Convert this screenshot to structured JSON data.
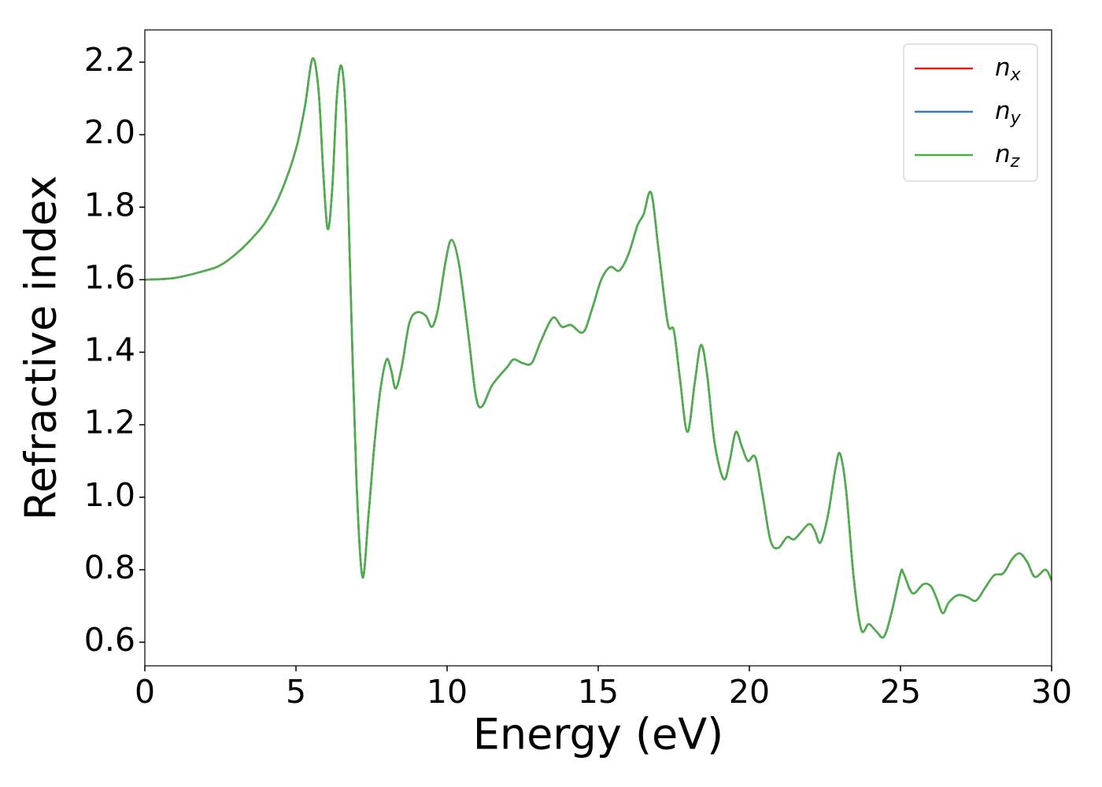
{
  "chart_data": {
    "type": "line",
    "x_label": "Energy (eV)",
    "y_label": "Refractive index",
    "x": [
      0,
      1,
      2,
      2.5,
      3,
      3.5,
      4,
      4.5,
      5,
      5.3,
      5.55,
      5.75,
      5.9,
      6.05,
      6.2,
      6.35,
      6.5,
      6.65,
      6.8,
      7.0,
      7.2,
      7.4,
      7.6,
      7.8,
      8.0,
      8.15,
      8.3,
      8.5,
      8.75,
      9.0,
      9.3,
      9.5,
      9.7,
      9.95,
      10.15,
      10.4,
      10.7,
      10.95,
      11.15,
      11.5,
      12.0,
      12.2,
      12.5,
      12.8,
      13.1,
      13.5,
      13.8,
      14.1,
      14.5,
      14.8,
      15.1,
      15.4,
      15.7,
      16.0,
      16.3,
      16.5,
      16.75,
      17.0,
      17.3,
      17.5,
      17.7,
      17.95,
      18.2,
      18.4,
      18.6,
      18.85,
      19.15,
      19.35,
      19.55,
      19.75,
      19.95,
      20.2,
      20.45,
      20.7,
      20.95,
      21.25,
      21.5,
      21.95,
      22.15,
      22.35,
      22.6,
      22.85,
      23.0,
      23.2,
      23.45,
      23.7,
      23.95,
      24.2,
      24.45,
      24.7,
      25.0,
      25.1,
      25.4,
      25.75,
      26.0,
      26.2,
      26.4,
      26.6,
      26.9,
      27.2,
      27.5,
      27.8,
      28.1,
      28.4,
      28.7,
      28.95,
      29.2,
      29.45,
      29.8,
      30.0
    ],
    "series": [
      {
        "name": "nx",
        "color": "#e41a1c",
        "values": [
          1.6,
          1.605,
          1.625,
          1.64,
          1.67,
          1.71,
          1.76,
          1.84,
          1.96,
          2.08,
          2.21,
          2.12,
          1.9,
          1.74,
          1.85,
          2.1,
          2.19,
          2.05,
          1.6,
          1.05,
          0.78,
          0.95,
          1.15,
          1.3,
          1.38,
          1.35,
          1.3,
          1.36,
          1.48,
          1.51,
          1.5,
          1.47,
          1.52,
          1.65,
          1.71,
          1.64,
          1.45,
          1.28,
          1.25,
          1.31,
          1.36,
          1.38,
          1.37,
          1.37,
          1.43,
          1.495,
          1.47,
          1.475,
          1.455,
          1.52,
          1.6,
          1.635,
          1.625,
          1.67,
          1.75,
          1.78,
          1.84,
          1.68,
          1.48,
          1.46,
          1.33,
          1.18,
          1.32,
          1.42,
          1.34,
          1.15,
          1.05,
          1.1,
          1.18,
          1.14,
          1.1,
          1.11,
          1.0,
          0.88,
          0.86,
          0.89,
          0.885,
          0.925,
          0.91,
          0.875,
          0.95,
          1.08,
          1.12,
          1.02,
          0.78,
          0.635,
          0.65,
          0.63,
          0.615,
          0.68,
          0.79,
          0.79,
          0.735,
          0.76,
          0.755,
          0.72,
          0.68,
          0.71,
          0.73,
          0.725,
          0.715,
          0.75,
          0.785,
          0.79,
          0.83,
          0.845,
          0.82,
          0.78,
          0.8,
          0.77
        ]
      },
      {
        "name": "ny",
        "color": "#377eb8",
        "values": [
          1.6,
          1.605,
          1.625,
          1.64,
          1.67,
          1.71,
          1.76,
          1.84,
          1.96,
          2.08,
          2.21,
          2.12,
          1.9,
          1.74,
          1.85,
          2.1,
          2.19,
          2.05,
          1.6,
          1.05,
          0.78,
          0.95,
          1.15,
          1.3,
          1.38,
          1.35,
          1.3,
          1.36,
          1.48,
          1.51,
          1.5,
          1.47,
          1.52,
          1.65,
          1.71,
          1.64,
          1.45,
          1.28,
          1.25,
          1.31,
          1.36,
          1.38,
          1.37,
          1.37,
          1.43,
          1.495,
          1.47,
          1.475,
          1.455,
          1.52,
          1.6,
          1.635,
          1.625,
          1.67,
          1.75,
          1.78,
          1.84,
          1.68,
          1.48,
          1.46,
          1.33,
          1.18,
          1.32,
          1.42,
          1.34,
          1.15,
          1.05,
          1.1,
          1.18,
          1.14,
          1.1,
          1.11,
          1.0,
          0.88,
          0.86,
          0.89,
          0.885,
          0.925,
          0.91,
          0.875,
          0.95,
          1.08,
          1.12,
          1.02,
          0.78,
          0.635,
          0.65,
          0.63,
          0.615,
          0.68,
          0.79,
          0.79,
          0.735,
          0.76,
          0.755,
          0.72,
          0.68,
          0.71,
          0.73,
          0.725,
          0.715,
          0.75,
          0.785,
          0.79,
          0.83,
          0.845,
          0.82,
          0.78,
          0.8,
          0.77
        ]
      },
      {
        "name": "nz",
        "color": "#4daf4a",
        "values": [
          1.6,
          1.605,
          1.625,
          1.64,
          1.67,
          1.71,
          1.76,
          1.84,
          1.96,
          2.08,
          2.21,
          2.12,
          1.9,
          1.74,
          1.85,
          2.1,
          2.19,
          2.05,
          1.6,
          1.05,
          0.78,
          0.95,
          1.15,
          1.3,
          1.38,
          1.35,
          1.3,
          1.36,
          1.48,
          1.51,
          1.5,
          1.47,
          1.52,
          1.65,
          1.71,
          1.64,
          1.45,
          1.28,
          1.25,
          1.31,
          1.36,
          1.38,
          1.37,
          1.37,
          1.43,
          1.495,
          1.47,
          1.475,
          1.455,
          1.52,
          1.6,
          1.635,
          1.625,
          1.67,
          1.75,
          1.78,
          1.84,
          1.68,
          1.48,
          1.46,
          1.33,
          1.18,
          1.32,
          1.42,
          1.34,
          1.15,
          1.05,
          1.1,
          1.18,
          1.14,
          1.1,
          1.11,
          1.0,
          0.88,
          0.86,
          0.89,
          0.885,
          0.925,
          0.91,
          0.875,
          0.95,
          1.08,
          1.12,
          1.02,
          0.78,
          0.635,
          0.65,
          0.63,
          0.615,
          0.68,
          0.79,
          0.79,
          0.735,
          0.76,
          0.755,
          0.72,
          0.68,
          0.71,
          0.73,
          0.725,
          0.715,
          0.75,
          0.785,
          0.79,
          0.83,
          0.845,
          0.82,
          0.78,
          0.8,
          0.77
        ]
      }
    ],
    "xlim": [
      0,
      30
    ],
    "xticks": [
      0,
      5,
      10,
      15,
      20,
      25,
      30
    ],
    "ylim": [
      0.535,
      2.289
    ],
    "yticks": [
      {
        "value": 0.6,
        "label": "0.6"
      },
      {
        "value": 0.8,
        "label": "0.8"
      },
      {
        "value": 1.0,
        "label": "1.0"
      },
      {
        "value": 1.2,
        "label": "1.2"
      },
      {
        "value": 1.4,
        "label": "1.4"
      },
      {
        "value": 1.6,
        "label": "1.6"
      },
      {
        "value": 1.8,
        "label": "1.8"
      },
      {
        "value": 2.0,
        "label": "2.0"
      },
      {
        "value": 2.2,
        "label": "2.2"
      }
    ],
    "legend": "upper right",
    "grid": false
  }
}
